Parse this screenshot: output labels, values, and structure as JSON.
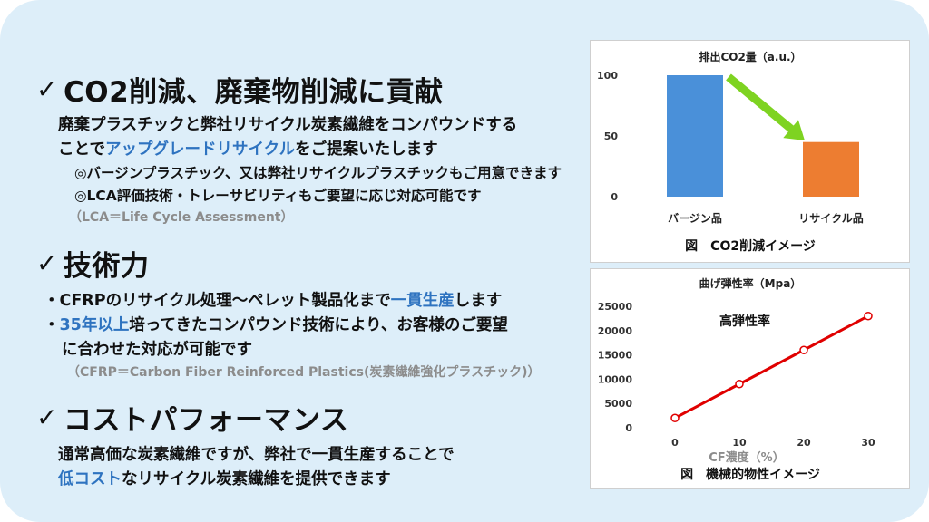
{
  "sections": [
    {
      "check": "✓",
      "heading": "CO2削減、廃棄物削減に貢献",
      "line1": "廃棄プラスチックと弊社リサイクル炭素繊維をコンパウンドする",
      "line2_pre": "ことで",
      "line2_hl": "アップグレードリサイクル",
      "line2_post": "をご提案いたします",
      "sub1": "◎バージンプラスチック、又は弊社リサイクルプラスチックもご用意できます",
      "sub2": "◎LCA評価技術・トレーサビリティもご要望に応じ対応可能です",
      "note": "（LCA＝Life Cycle Assessment）"
    },
    {
      "check": "✓",
      "heading": "技術力",
      "line1_pre": "・CFRPのリサイクル処理～ペレット製品化まで",
      "line1_hl": "一貫生産",
      "line1_post": "します",
      "line2_pre": "・",
      "line2_hl": "35年以上",
      "line2_post": "培ってきたコンパウンド技術により、お客様のご要望",
      "line3": "に合わせた対応が可能です",
      "note": "（CFRP＝Carbon Fiber Reinforced Plastics(炭素繊維強化プラスチック)）"
    },
    {
      "check": "✓",
      "heading": "コストパフォーマンス",
      "line1": "通常高価な炭素繊維ですが、弊社で一貫生産することで",
      "line2_hl": "低コスト",
      "line2_post": "なリサイクル炭素繊維を提供できます"
    }
  ],
  "colors": {
    "highlight": "#2e73c0",
    "virgin_bar": "#4a90d9",
    "recycle_bar": "#ed7d31",
    "arrow": "#7ed321",
    "line": "#e00000"
  },
  "chart_data": [
    {
      "type": "bar",
      "title": "排出CO2量（a.u.）",
      "categories": [
        "バージン品",
        "リサイクル品"
      ],
      "values": [
        100,
        45
      ],
      "ylim": [
        0,
        100
      ],
      "yticks": [
        "0",
        "50",
        "100"
      ],
      "caption": "図　CO2削減イメージ",
      "annotation": "green-arrow"
    },
    {
      "type": "line",
      "title": "曲げ弾性率（Mpa）",
      "x": [
        0,
        10,
        20,
        30
      ],
      "xticks": [
        "0",
        "10",
        "20",
        "30"
      ],
      "y": [
        2000,
        9000,
        16000,
        23000
      ],
      "ylim": [
        0,
        25000
      ],
      "yticks": [
        "0",
        "5000",
        "10000",
        "15000",
        "20000",
        "25000"
      ],
      "xlabel": "CF濃度（%）",
      "annotation": "高弾性率",
      "caption": "図　機械的物性イメージ"
    }
  ]
}
